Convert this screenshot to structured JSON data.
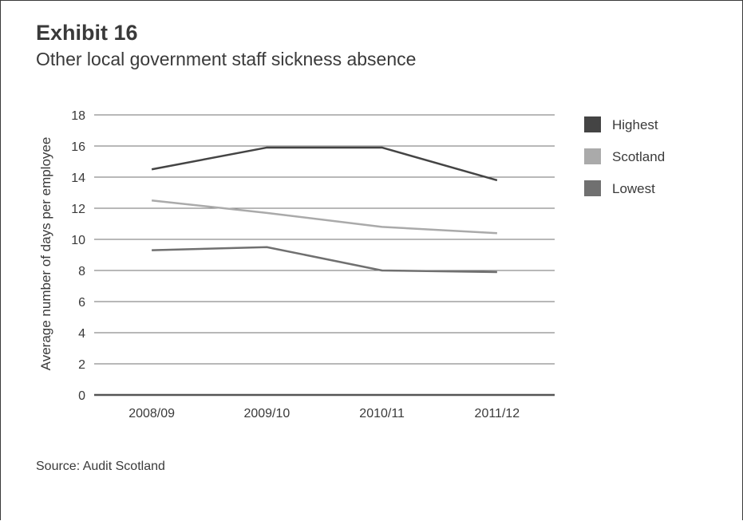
{
  "exhibit_label": "Exhibit 16",
  "source": "Source: Audit Scotland",
  "chart_data": {
    "type": "line",
    "title": "Other local government staff sickness absence",
    "ylabel": "Average number of days per employee",
    "xlabel": "",
    "categories": [
      "2008/09",
      "2009/10",
      "2010/11",
      "2011/12"
    ],
    "ylim": [
      0,
      18
    ],
    "yticks": [
      0,
      2,
      4,
      6,
      8,
      10,
      12,
      14,
      16,
      18
    ],
    "grid": true,
    "legend_position": "right",
    "series": [
      {
        "name": "Highest",
        "values": [
          14.5,
          15.9,
          15.9,
          13.8
        ],
        "color": "#444444"
      },
      {
        "name": "Scotland",
        "values": [
          12.5,
          11.7,
          10.8,
          10.4
        ],
        "color": "#aaaaaa"
      },
      {
        "name": "Lowest",
        "values": [
          9.3,
          9.5,
          8.0,
          7.9
        ],
        "color": "#707070"
      }
    ]
  }
}
